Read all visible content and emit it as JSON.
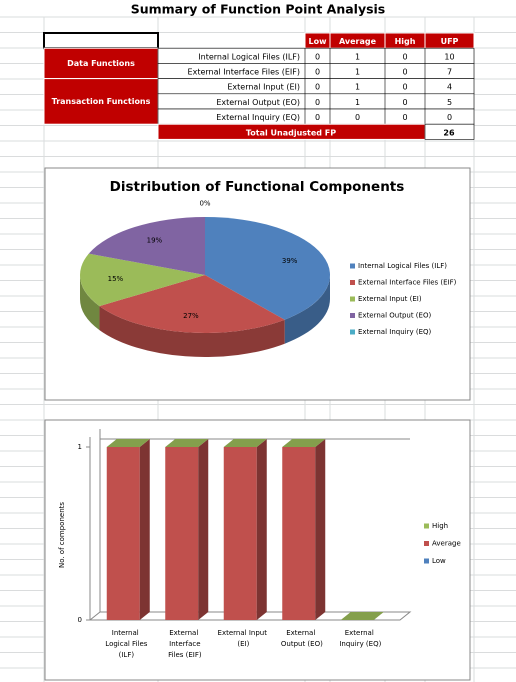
{
  "title": "Summary of Function Point Analysis",
  "table": {
    "columns": [
      "Low",
      "Average",
      "High",
      "UFP"
    ],
    "groups": [
      {
        "label": "Data Functions",
        "rows": [
          [
            "Internal Logical Files (ILF)",
            0,
            1,
            0,
            10
          ],
          [
            "External Interface Files (EIF)",
            0,
            1,
            0,
            7
          ]
        ]
      },
      {
        "label": "Transaction Functions",
        "rows": [
          [
            "External Input (EI)",
            0,
            1,
            0,
            4
          ],
          [
            "External Output (EO)",
            0,
            1,
            0,
            5
          ],
          [
            "External Inquiry (EQ)",
            0,
            0,
            0,
            0
          ]
        ]
      }
    ],
    "total": {
      "label": "Total Unadjusted FP",
      "value": 26
    }
  },
  "chart_data": [
    {
      "type": "pie",
      "title": "Distribution of Functional Components",
      "categories": [
        "Internal Logical Files (ILF)",
        "External Interface Files (EIF)",
        "External Input (EI)",
        "External Output (EO)",
        "External Inquiry (EQ)"
      ],
      "values": [
        39,
        27,
        15,
        19,
        0
      ],
      "value_labels": [
        "39%",
        "27%",
        "15%",
        "19%",
        "0%"
      ],
      "colors": [
        "#4f81bd",
        "#c0504d",
        "#9bbb59",
        "#8064a2",
        "#4bacc6"
      ],
      "legend": "right"
    },
    {
      "type": "bar3d",
      "stacked": true,
      "y_label": "No. of components",
      "categories": [
        "Internal Logical Files (ILF)",
        "External Interface Files (EIF)",
        "External Input (EI)",
        "External Output (EO)",
        "External Inquiry (EQ)"
      ],
      "series": [
        {
          "name": "Low",
          "color": "#4f81bd",
          "values": [
            0,
            0,
            0,
            0,
            0
          ]
        },
        {
          "name": "Average",
          "color": "#c0504d",
          "values": [
            1,
            1,
            1,
            1,
            0
          ]
        },
        {
          "name": "High",
          "color": "#9bbb59",
          "values": [
            0,
            0,
            0,
            0,
            0
          ]
        }
      ],
      "ylim": [
        0,
        1
      ],
      "yticks": [
        0,
        1
      ],
      "grid": true,
      "legend": "right"
    }
  ]
}
